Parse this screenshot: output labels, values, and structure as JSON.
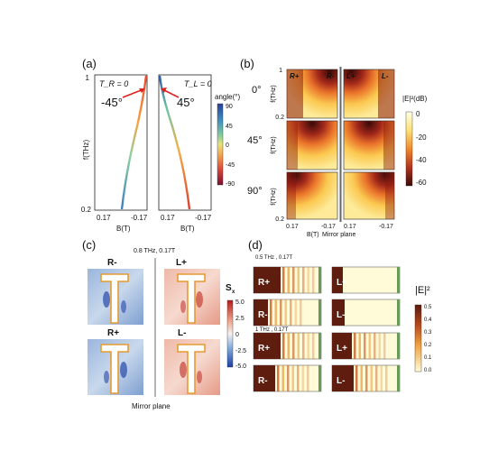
{
  "panel_a": {
    "label": "(a)",
    "left_title": "T_R = 0",
    "right_title": "T_L = 0",
    "left_angle": "-45°",
    "right_angle": "45°",
    "ylabel": "f(THz)",
    "ytick_top": "1",
    "ytick_bottom": "0.2",
    "xlabel": "B(T)",
    "xtick_left": "0.17",
    "xtick_right": "-0.17",
    "colorbar_title": "angle(°)",
    "colorbar_ticks": [
      "90",
      "45",
      "0",
      "-45",
      "-90"
    ]
  },
  "panel_b": {
    "label": "(b)",
    "row_labels": [
      "0°",
      "45°",
      "90°"
    ],
    "col_labels": [
      "R+",
      "R-",
      "L+",
      "L-"
    ],
    "ylabel": "f(THz)",
    "ytick_top": "1",
    "ytick_bottom": "0.2",
    "xlabel": "B(T)",
    "xtick_left": "0.17",
    "xtick_right": "-0.17",
    "mirror_label": "Mirror plane",
    "colorbar_title": "|E|²(dB)",
    "colorbar_ticks": [
      "0",
      "-20",
      "-40",
      "-60"
    ]
  },
  "panel_c": {
    "label": "(c)",
    "condition": "0.8 THz, 0.17T",
    "cells": [
      "R-",
      "L+",
      "R+",
      "L-"
    ],
    "colorbar_title": "S",
    "colorbar_sub": "x",
    "colorbar_ticks": [
      "5.0",
      "2.5",
      "0",
      "-2.5",
      "-5.0"
    ],
    "mirror_label": "Mirror plane"
  },
  "panel_d": {
    "label": "(d)",
    "condition_top": "0.5 THz , 0.17T",
    "condition_bottom": "1 THz , 0.17T",
    "cells_top": [
      "R+",
      "L+",
      "R-",
      "L-"
    ],
    "cells_bottom": [
      "R+",
      "L+",
      "R-",
      "L-"
    ],
    "colorbar_title": "|E|²",
    "colorbar_ticks": [
      "0.5",
      "0.4",
      "0.3",
      "0.2",
      "0.1",
      "0.0"
    ]
  }
}
